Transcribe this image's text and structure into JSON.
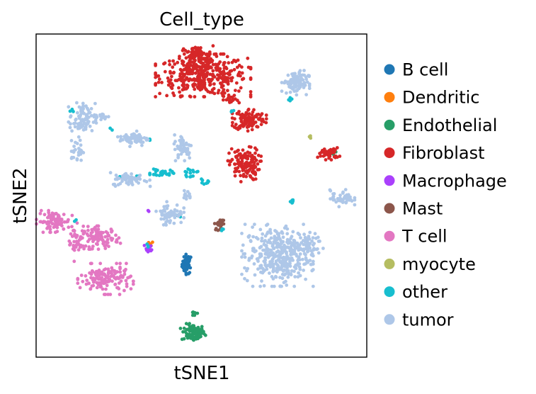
{
  "chart_data": {
    "type": "scatter",
    "title": "Cell_type",
    "xlabel": "tSNE1",
    "ylabel": "tSNE2",
    "grid": false,
    "xticks": false,
    "yticks": false,
    "xlim": [
      0,
      100
    ],
    "ylim": [
      0,
      100
    ],
    "legend_position": "right",
    "series": [
      {
        "name": "B cell",
        "color": "#1f77b4",
        "clusters": [
          {
            "cx": 45.6,
            "cy": 28.8,
            "rx": 1.3,
            "ry": 2.7,
            "n": 50
          }
        ]
      },
      {
        "name": "Dendritic",
        "color": "#ff7f0e",
        "clusters": [
          {
            "cx": 34.7,
            "cy": 34.9,
            "rx": 0.6,
            "ry": 0.8,
            "n": 6
          }
        ]
      },
      {
        "name": "Endothelial",
        "color": "#279e68",
        "clusters": [
          {
            "cx": 47.5,
            "cy": 7.5,
            "rx": 3.2,
            "ry": 2.4,
            "n": 90
          },
          {
            "cx": 48.0,
            "cy": 13.5,
            "rx": 1.2,
            "ry": 0.8,
            "n": 10
          },
          {
            "cx": 90.5,
            "cy": 63.2,
            "rx": 0.8,
            "ry": 0.8,
            "n": 3
          }
        ]
      },
      {
        "name": "Fibroblast",
        "color": "#d62728",
        "clusters": [
          {
            "cx": 50.5,
            "cy": 87.2,
            "rx": 12.0,
            "ry": 5.5,
            "n": 380
          },
          {
            "cx": 48.5,
            "cy": 93.0,
            "rx": 4.5,
            "ry": 3.0,
            "n": 80
          },
          {
            "cx": 64.5,
            "cy": 73.6,
            "rx": 4.3,
            "ry": 3.0,
            "n": 110
          },
          {
            "cx": 63.0,
            "cy": 59.7,
            "rx": 4.2,
            "ry": 4.5,
            "n": 140
          },
          {
            "cx": 59.0,
            "cy": 79.5,
            "rx": 2.0,
            "ry": 1.5,
            "n": 20
          },
          {
            "cx": 88.5,
            "cy": 63.0,
            "rx": 2.8,
            "ry": 1.6,
            "n": 45
          }
        ]
      },
      {
        "name": "Macrophage",
        "color": "#aa40fc",
        "clusters": [
          {
            "cx": 34.0,
            "cy": 33.7,
            "rx": 1.2,
            "ry": 1.3,
            "n": 12
          },
          {
            "cx": 34.0,
            "cy": 45.2,
            "rx": 0.4,
            "ry": 0.4,
            "n": 2
          }
        ]
      },
      {
        "name": "Mast",
        "color": "#8c564b",
        "clusters": [
          {
            "cx": 55.5,
            "cy": 41.0,
            "rx": 1.4,
            "ry": 1.5,
            "n": 22
          }
        ]
      },
      {
        "name": "T cell",
        "color": "#e377c2",
        "clusters": [
          {
            "cx": 5.5,
            "cy": 42.0,
            "rx": 4.5,
            "ry": 2.8,
            "n": 90
          },
          {
            "cx": 19.5,
            "cy": 37.0,
            "rx": 5.0,
            "ry": 3.0,
            "n": 95
          },
          {
            "cx": 21.0,
            "cy": 24.2,
            "rx": 7.0,
            "ry": 4.0,
            "n": 150
          },
          {
            "cx": 12.0,
            "cy": 35.5,
            "rx": 2.5,
            "ry": 5.0,
            "n": 40
          }
        ]
      },
      {
        "name": "myocyte",
        "color": "#b5bd61",
        "clusters": [
          {
            "cx": 83.0,
            "cy": 68.1,
            "rx": 0.6,
            "ry": 0.6,
            "n": 4
          }
        ]
      },
      {
        "name": "other",
        "color": "#17becf",
        "clusters": [
          {
            "cx": 38.0,
            "cy": 57.0,
            "rx": 3.0,
            "ry": 1.0,
            "n": 30
          },
          {
            "cx": 46.5,
            "cy": 57.0,
            "rx": 2.0,
            "ry": 1.0,
            "n": 14
          },
          {
            "cx": 51.0,
            "cy": 54.0,
            "rx": 1.5,
            "ry": 1.2,
            "n": 8
          },
          {
            "cx": 31.0,
            "cy": 56.0,
            "rx": 1.0,
            "ry": 0.6,
            "n": 5
          },
          {
            "cx": 77.5,
            "cy": 48.2,
            "rx": 0.8,
            "ry": 0.6,
            "n": 7
          },
          {
            "cx": 59.5,
            "cy": 76.4,
            "rx": 0.6,
            "ry": 0.6,
            "n": 3
          },
          {
            "cx": 11.0,
            "cy": 76.5,
            "rx": 0.6,
            "ry": 0.6,
            "n": 3
          },
          {
            "cx": 23.0,
            "cy": 70.5,
            "rx": 0.5,
            "ry": 0.5,
            "n": 2
          },
          {
            "cx": 76.5,
            "cy": 80.0,
            "rx": 1.0,
            "ry": 0.8,
            "n": 4
          },
          {
            "cx": 34.0,
            "cy": 34.5,
            "rx": 0.5,
            "ry": 0.5,
            "n": 3
          },
          {
            "cx": 56.0,
            "cy": 39.5,
            "rx": 0.6,
            "ry": 0.5,
            "n": 3
          },
          {
            "cx": 34.5,
            "cy": 67.0,
            "rx": 0.8,
            "ry": 0.6,
            "n": 3
          },
          {
            "cx": 25.0,
            "cy": 56.0,
            "rx": 0.6,
            "ry": 0.5,
            "n": 2
          },
          {
            "cx": 43.0,
            "cy": 44.0,
            "rx": 0.6,
            "ry": 0.6,
            "n": 2
          },
          {
            "cx": 11.5,
            "cy": 42.0,
            "rx": 0.6,
            "ry": 0.6,
            "n": 2
          }
        ]
      },
      {
        "name": "tumor",
        "color": "#aec7e8",
        "clusters": [
          {
            "cx": 78.5,
            "cy": 85.0,
            "rx": 3.5,
            "ry": 3.2,
            "n": 95
          },
          {
            "cx": 14.0,
            "cy": 73.5,
            "rx": 3.5,
            "ry": 4.5,
            "n": 80
          },
          {
            "cx": 12.5,
            "cy": 64.0,
            "rx": 1.5,
            "ry": 3.0,
            "n": 30
          },
          {
            "cx": 20.0,
            "cy": 74.5,
            "rx": 2.0,
            "ry": 0.8,
            "n": 15
          },
          {
            "cx": 29.5,
            "cy": 67.6,
            "rx": 4.0,
            "ry": 2.0,
            "n": 60
          },
          {
            "cx": 44.5,
            "cy": 65.0,
            "rx": 2.5,
            "ry": 3.5,
            "n": 50
          },
          {
            "cx": 28.5,
            "cy": 55.0,
            "rx": 5.0,
            "ry": 1.8,
            "n": 60
          },
          {
            "cx": 40.5,
            "cy": 44.5,
            "rx": 3.5,
            "ry": 3.0,
            "n": 60
          },
          {
            "cx": 45.5,
            "cy": 50.0,
            "rx": 1.2,
            "ry": 1.5,
            "n": 10
          },
          {
            "cx": 73.0,
            "cy": 31.5,
            "rx": 9.0,
            "ry": 8.0,
            "n": 380
          },
          {
            "cx": 82.0,
            "cy": 35.0,
            "rx": 4.0,
            "ry": 3.0,
            "n": 50
          },
          {
            "cx": 92.5,
            "cy": 49.2,
            "rx": 3.2,
            "ry": 2.2,
            "n": 45
          }
        ]
      }
    ]
  }
}
